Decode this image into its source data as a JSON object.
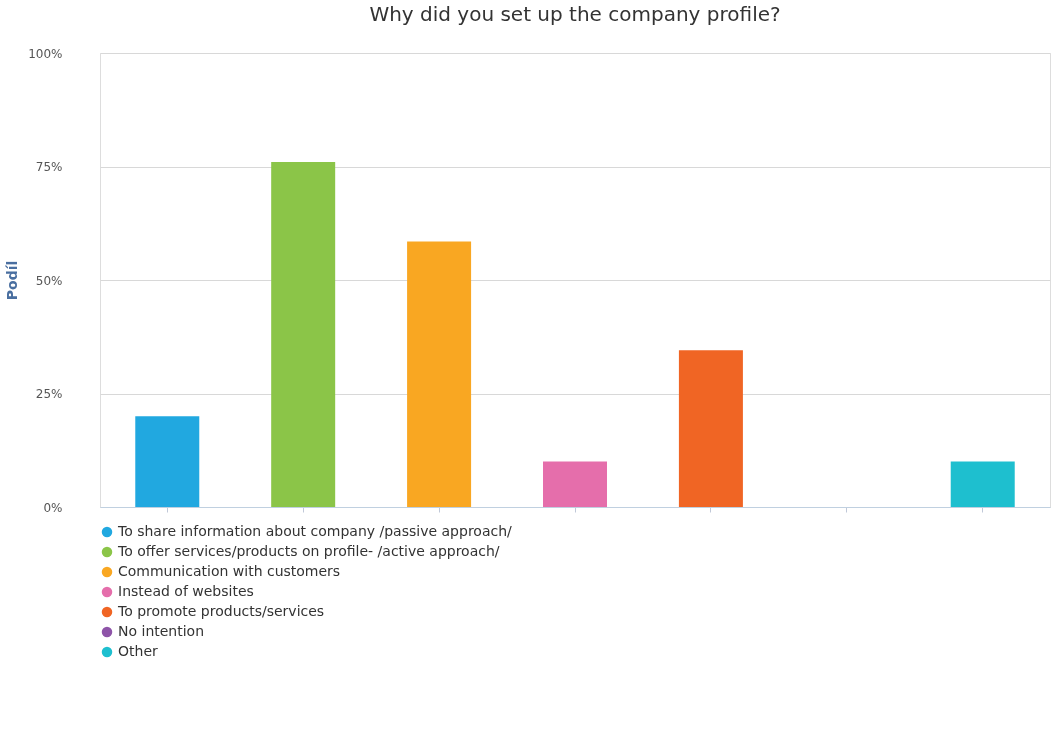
{
  "chart_data": {
    "type": "bar",
    "title": "Why did you set up the company profile?",
    "ylabel": "Podíl",
    "categories": [
      null,
      null,
      null,
      null,
      null,
      null,
      null
    ],
    "series": [
      {
        "name": "To share information about company /passive approach/",
        "color": "#21a8e0",
        "values": [
          20,
          null,
          null,
          null,
          null,
          null,
          null
        ]
      },
      {
        "name": "To offer services/products on profile- /active approach/",
        "color": "#8bc548",
        "values": [
          null,
          76,
          null,
          null,
          null,
          null,
          null
        ]
      },
      {
        "name": "Communication with customers",
        "color": "#f9a722",
        "values": [
          null,
          null,
          58.5,
          null,
          null,
          null,
          null
        ]
      },
      {
        "name": "Instead of websites",
        "color": "#e56eab",
        "values": [
          null,
          null,
          null,
          10,
          null,
          null,
          null
        ]
      },
      {
        "name": "To promote products/services",
        "color": "#f06524",
        "values": [
          null,
          null,
          null,
          null,
          34.5,
          null,
          null
        ]
      },
      {
        "name": "No intention",
        "color": "#8e54a8",
        "values": [
          null,
          null,
          null,
          null,
          null,
          0,
          null
        ]
      },
      {
        "name": "Other",
        "color": "#1ebfcf",
        "values": [
          null,
          null,
          null,
          null,
          null,
          null,
          10
        ]
      }
    ],
    "ylim": [
      0,
      100
    ],
    "yticks": [
      {
        "value": 0,
        "label": "0%"
      },
      {
        "value": 25,
        "label": "25%"
      },
      {
        "value": 50,
        "label": "50%"
      },
      {
        "value": 75,
        "label": "75%"
      },
      {
        "value": 100,
        "label": "100%"
      }
    ],
    "grid": "y",
    "legend": "bottom left",
    "tick_labels": "y"
  }
}
